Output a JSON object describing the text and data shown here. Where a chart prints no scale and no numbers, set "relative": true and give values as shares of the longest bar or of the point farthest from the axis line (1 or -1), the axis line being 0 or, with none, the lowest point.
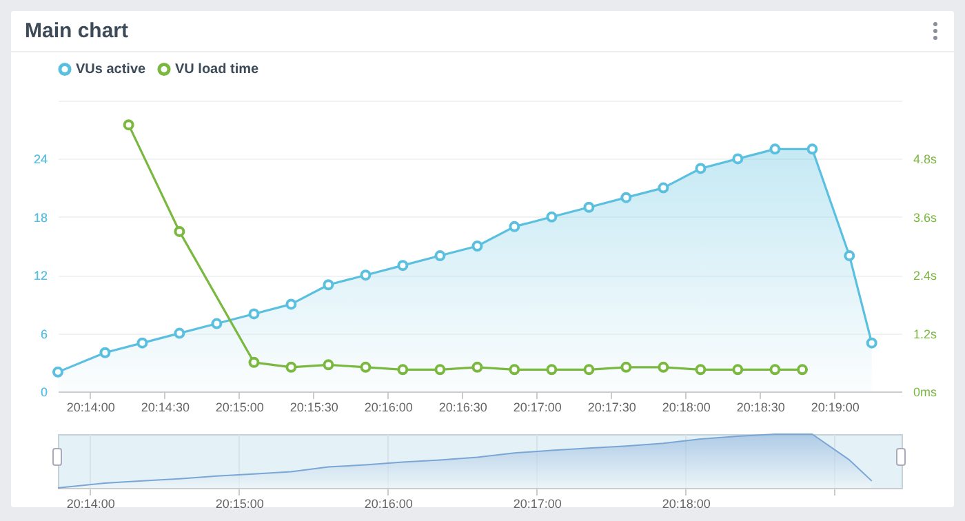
{
  "chart_data": [
    {
      "type": "area",
      "title": "Main chart",
      "series": [
        {
          "name": "VUs active",
          "color": "#5bc0e0",
          "x": [
            20.22972,
            20.235,
            20.23917,
            20.24333,
            20.2475,
            20.25167,
            20.25583,
            20.26,
            20.26417,
            20.26833,
            20.2725,
            20.27667,
            20.28083,
            20.285,
            20.28917,
            20.29333,
            20.2975,
            20.30167,
            20.30583,
            20.31,
            20.31417,
            20.31833,
            20.32083
          ],
          "values": [
            2,
            4,
            5,
            6,
            7,
            8,
            9,
            11,
            12,
            13,
            14,
            15,
            17,
            18,
            19,
            20,
            21,
            23,
            24,
            25,
            25,
            14,
            5
          ]
        },
        {
          "name": "VU load time",
          "type": "line",
          "color": "#7ab840",
          "axis": "y2",
          "x": [
            20.23764,
            20.24333,
            20.25167,
            20.25583,
            20.26,
            20.26417,
            20.26833,
            20.2725,
            20.27667,
            20.28083,
            20.285,
            20.28917,
            20.29333,
            20.2975,
            20.30167,
            20.30583,
            20.31,
            20.31306
          ],
          "values": [
            5.5,
            3.3,
            0.6,
            0.5,
            0.55,
            0.5,
            0.45,
            0.45,
            0.5,
            0.45,
            0.45,
            0.45,
            0.5,
            0.5,
            0.45,
            0.45,
            0.45,
            0.45
          ]
        }
      ],
      "xlim": [
        20.22972,
        20.32417
      ],
      "xticks": [
        {
          "value": 20.23333,
          "label": "20:14:00"
        },
        {
          "value": 20.24167,
          "label": "20:14:30"
        },
        {
          "value": 20.25,
          "label": "20:15:00"
        },
        {
          "value": 20.25833,
          "label": "20:15:30"
        },
        {
          "value": 20.26667,
          "label": "20:16:00"
        },
        {
          "value": 20.275,
          "label": "20:16:30"
        },
        {
          "value": 20.28333,
          "label": "20:17:00"
        },
        {
          "value": 20.29167,
          "label": "20:17:30"
        },
        {
          "value": 20.3,
          "label": "20:18:00"
        },
        {
          "value": 20.30833,
          "label": "20:18:30"
        },
        {
          "value": 20.31667,
          "label": "20:19:00"
        }
      ],
      "ylim": [
        0,
        30
      ],
      "yticks": [
        0,
        6,
        12,
        18,
        24,
        {
          "value": 30,
          "label": null
        }
      ],
      "y2lim": [
        0,
        6
      ],
      "y2ticks": [
        {
          "value": 0,
          "label": "0ms"
        },
        {
          "value": 1.2,
          "label": "1.2s"
        },
        {
          "value": 2.4,
          "label": "2.4s"
        },
        {
          "value": 3.6,
          "label": "3.6s"
        },
        {
          "value": 4.8,
          "label": "4.8s"
        },
        {
          "value": 6,
          "label": null
        }
      ],
      "grid": "y",
      "legend": "top left",
      "marker": "circle"
    },
    {
      "type": "area",
      "relative": true,
      "series": [
        {
          "color": "#7aa6d6",
          "x": [
            20.22972,
            20.235,
            20.23917,
            20.24333,
            20.2475,
            20.25167,
            20.25583,
            20.26,
            20.26417,
            20.26833,
            20.2725,
            20.27667,
            20.28083,
            20.285,
            20.28917,
            20.29333,
            20.2975,
            20.30167,
            20.30583,
            20.31,
            20.31417,
            20.31833,
            20.32083
          ],
          "values": [
            0,
            0.09,
            0.13,
            0.17,
            0.22,
            0.26,
            0.3,
            0.39,
            0.43,
            0.48,
            0.52,
            0.57,
            0.65,
            0.7,
            0.74,
            0.78,
            0.83,
            0.91,
            0.96,
            1,
            1,
            0.52,
            0.13
          ]
        }
      ],
      "xlim": [
        20.22972,
        20.32417
      ],
      "xticks": [
        {
          "value": 20.23333,
          "label": "20:14:00"
        },
        {
          "value": 20.25,
          "label": "20:15:00"
        },
        {
          "value": 20.26667,
          "label": "20:16:00"
        },
        {
          "value": 20.28333,
          "label": "20:17:00"
        },
        {
          "value": 20.3,
          "label": "20:18:00"
        },
        {
          "value": 20.31667,
          "label": null
        }
      ],
      "grid": "x"
    }
  ]
}
